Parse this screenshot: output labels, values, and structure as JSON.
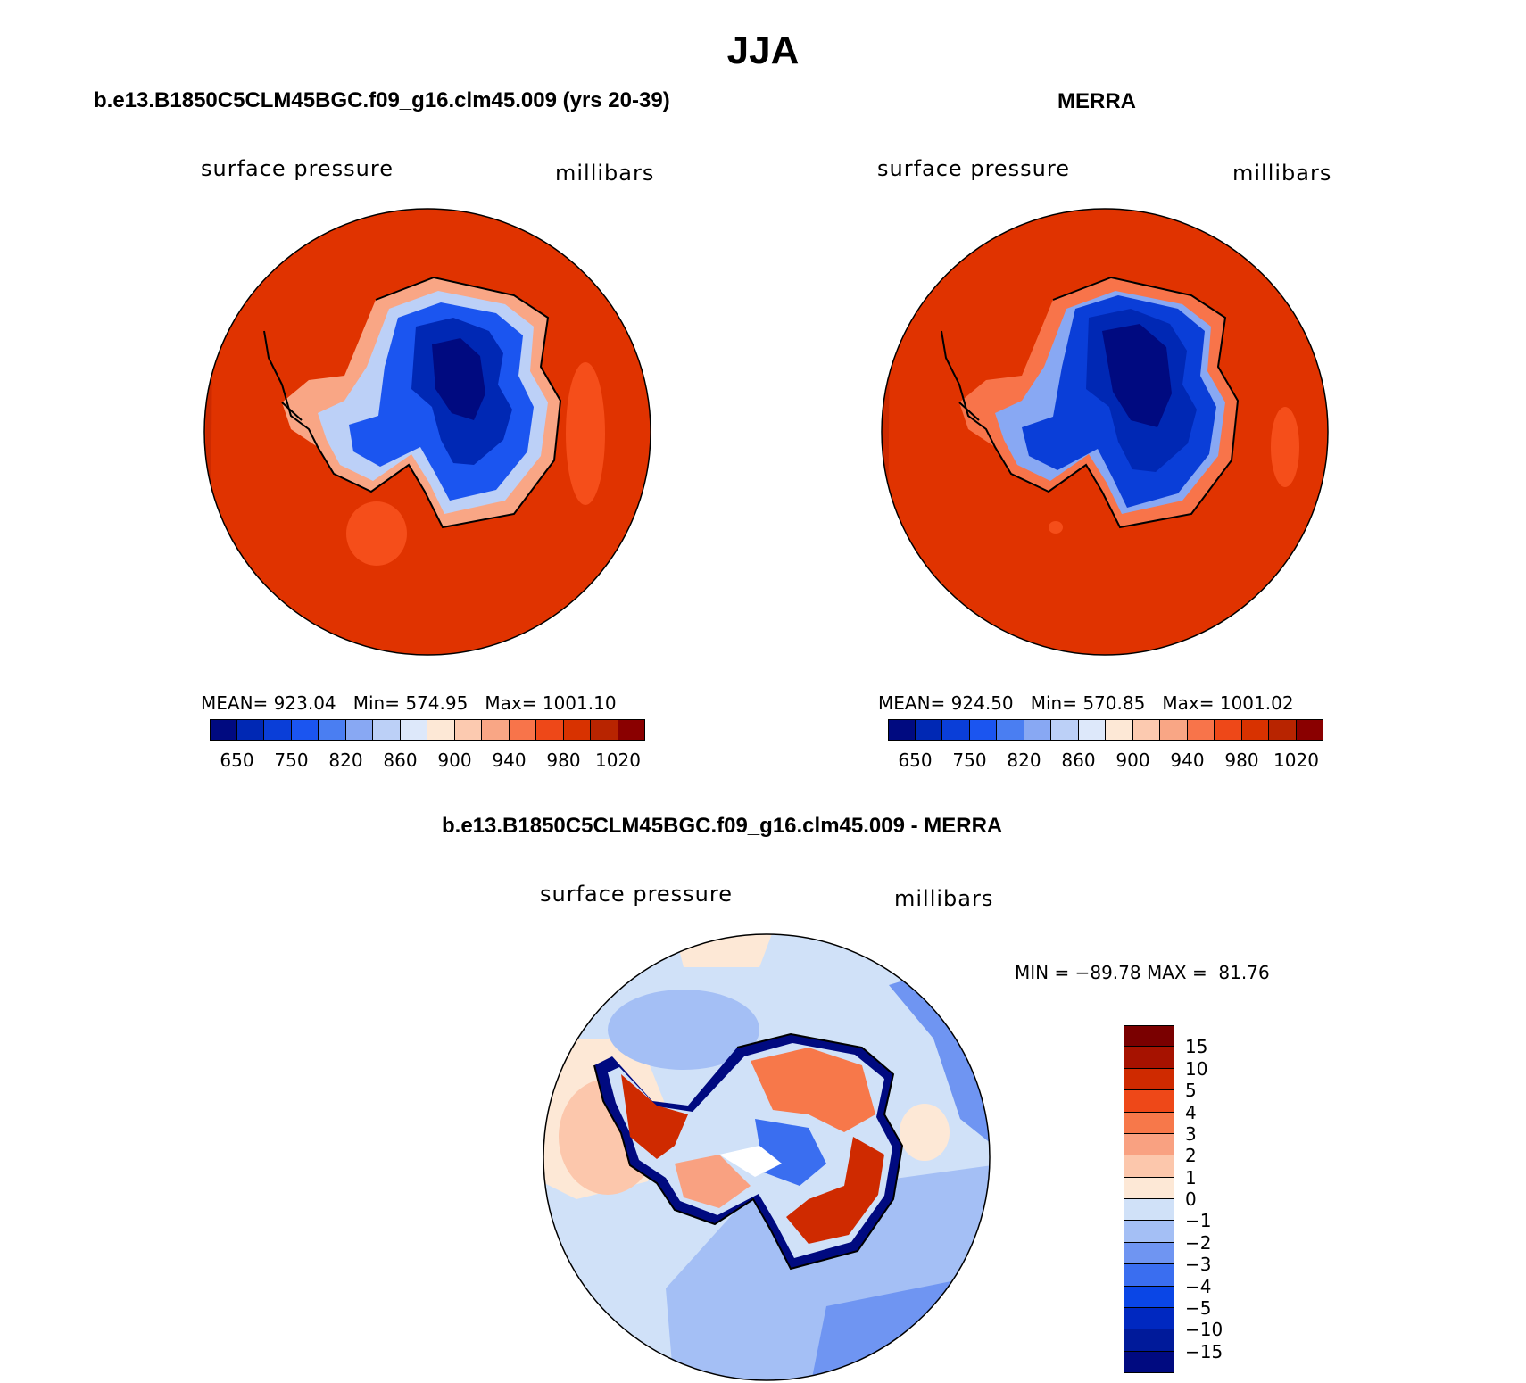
{
  "figure": {
    "title": "JJA"
  },
  "colors": {
    "abs_scale": [
      "#000a80",
      "#0028b4",
      "#0a3ed8",
      "#1b55f0",
      "#4a7ef2",
      "#88a8f3",
      "#bcd0f7",
      "#dde8fa",
      "#fde8d6",
      "#fccab0",
      "#f9a685",
      "#f8744a",
      "#ee4818",
      "#d83200",
      "#b82400",
      "#8a0000"
    ],
    "diff_scale": [
      "#000a80",
      "#001a9a",
      "#0028c0",
      "#0a46e6",
      "#3a6ef0",
      "#6f95f2",
      "#a4bff5",
      "#d0e1f8",
      "#fde8d6",
      "#fcc7ac",
      "#f9a181",
      "#f7784a",
      "#ee4818",
      "#cf2a00",
      "#a61200",
      "#7a0000"
    ]
  },
  "chart_data": [
    {
      "type": "heatmap",
      "panel": "model",
      "title": "b.e13.B1850C5CLM45BGC.f09_g16.clm45.009 (yrs 20-39)",
      "left_label": "surface pressure",
      "right_label": "millibars",
      "stats": {
        "mean_label": "MEAN=",
        "mean": "923.04",
        "min_label": "Min=",
        "min": "574.95",
        "max_label": "Max=",
        "max": "1001.10"
      },
      "colorbar_ticks": [
        "650",
        "750",
        "820",
        "860",
        "900",
        "940",
        "980",
        "1020"
      ],
      "projection": "south polar stereographic"
    },
    {
      "type": "heatmap",
      "panel": "obs",
      "title": "MERRA",
      "left_label": "surface pressure",
      "right_label": "millibars",
      "stats": {
        "mean_label": "MEAN=",
        "mean": "924.50",
        "min_label": "Min=",
        "min": "570.85",
        "max_label": "Max=",
        "max": "1001.02"
      },
      "colorbar_ticks": [
        "650",
        "750",
        "820",
        "860",
        "900",
        "940",
        "980",
        "1020"
      ],
      "projection": "south polar stereographic"
    },
    {
      "type": "heatmap",
      "panel": "difference",
      "title": "b.e13.B1850C5CLM45BGC.f09_g16.clm45.009 - MERRA",
      "left_label": "surface pressure",
      "right_label": "millibars",
      "minmax": "MIN = −89.78 MAX =  81.76",
      "min": -89.78,
      "max": 81.76,
      "colorbar_ticks": [
        "15",
        "10",
        "5",
        "4",
        "3",
        "2",
        "1",
        "0",
        "−1",
        "−2",
        "−3",
        "−4",
        "−5",
        "−10",
        "−15"
      ],
      "projection": "south polar stereographic"
    }
  ]
}
